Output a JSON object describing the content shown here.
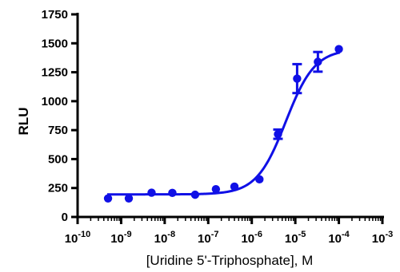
{
  "chart_data": {
    "type": "scatter",
    "title": "",
    "xlabel": "[Uridine 5'-Triphosphate], M",
    "ylabel": "RLU",
    "x_scale": "log",
    "xlim": [
      1e-10,
      0.001
    ],
    "ylim": [
      0,
      1750
    ],
    "x_ticks": [
      {
        "base": "10",
        "exp": "-10"
      },
      {
        "base": "10",
        "exp": "-9"
      },
      {
        "base": "10",
        "exp": "-8"
      },
      {
        "base": "10",
        "exp": "-7"
      },
      {
        "base": "10",
        "exp": "-6"
      },
      {
        "base": "10",
        "exp": "-5"
      },
      {
        "base": "10",
        "exp": "-4"
      },
      {
        "base": "10",
        "exp": "-3"
      }
    ],
    "y_ticks": [
      "0",
      "250",
      "500",
      "750",
      "1000",
      "1250",
      "1500",
      "1750"
    ],
    "grid": false,
    "series": [
      {
        "color": "#1010e6",
        "points": [
          {
            "x": 5e-10,
            "y": 160,
            "err": 0
          },
          {
            "x": 1.5e-09,
            "y": 160,
            "err": 0
          },
          {
            "x": 5e-09,
            "y": 210,
            "err": 0
          },
          {
            "x": 1.5e-08,
            "y": 208,
            "err": 0
          },
          {
            "x": 5e-08,
            "y": 192,
            "err": 0
          },
          {
            "x": 1.5e-07,
            "y": 240,
            "err": 0
          },
          {
            "x": 4e-07,
            "y": 262,
            "err": 0
          },
          {
            "x": 1.5e-06,
            "y": 325,
            "err": 0
          },
          {
            "x": 4e-06,
            "y": 715,
            "err": 40
          },
          {
            "x": 1.1e-05,
            "y": 1195,
            "err": 125
          },
          {
            "x": 3.3e-05,
            "y": 1340,
            "err": 85
          },
          {
            "x": 0.0001,
            "y": 1450,
            "err": 0
          }
        ],
        "fit": {
          "bottom": 195,
          "top": 1450,
          "log_ec50": -5.22,
          "hill": 1.3
        }
      }
    ]
  }
}
